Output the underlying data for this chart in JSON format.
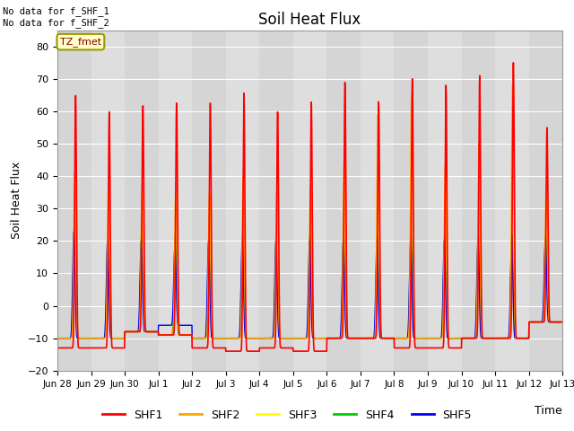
{
  "title": "Soil Heat Flux",
  "ylabel": "Soil Heat Flux",
  "xlabel": "Time",
  "annotation_text": "No data for f_SHF_1\nNo data for f_SHF_2",
  "legend_box_text": "TZ_fmet",
  "ylim": [
    -20,
    85
  ],
  "yticks": [
    -20,
    -10,
    0,
    10,
    20,
    30,
    40,
    50,
    60,
    70,
    80
  ],
  "colors": {
    "SHF1": "#ff0000",
    "SHF2": "#ffa500",
    "SHF3": "#ffff00",
    "SHF4": "#00cc00",
    "SHF5": "#0000ff"
  },
  "background_color": "#dcdcdc",
  "x_tick_labels": [
    "Jun 28",
    "Jun 29",
    "Jun 30",
    "Jul 1",
    "Jul 2",
    "Jul 3",
    "Jul 4",
    "Jul 5",
    "Jul 6",
    "Jul 7",
    "Jul 8",
    "Jul 9",
    "Jul 10",
    "Jul 11",
    "Jul 12",
    "Jul 13"
  ],
  "n_days": 16,
  "peaks_shf1": [
    65,
    60,
    62,
    63,
    63,
    66,
    60,
    63,
    69,
    63,
    70,
    68,
    71,
    75,
    55
  ],
  "peaks_shf2": [
    41,
    37,
    37,
    38,
    35,
    40,
    36,
    37,
    45,
    59,
    65,
    43,
    50,
    68,
    37
  ],
  "peaks_shf3": [
    22,
    20,
    22,
    22,
    20,
    22,
    22,
    22,
    22,
    22,
    22,
    22,
    22,
    22,
    22
  ],
  "peaks_shf4": [
    22,
    20,
    22,
    22,
    20,
    22,
    22,
    22,
    22,
    22,
    22,
    22,
    22,
    22,
    22
  ],
  "peaks_shf5": [
    23,
    20,
    20,
    18,
    20,
    20,
    20,
    20,
    20,
    20,
    20,
    20,
    20,
    20,
    20
  ],
  "mins_shf1": [
    -13,
    -13,
    -8,
    -9,
    -13,
    -14,
    -13,
    -14,
    -10,
    -10,
    -13,
    -13,
    -10,
    -10,
    -5
  ],
  "mins_shf2": [
    -10,
    -10,
    -8,
    -9,
    -10,
    -10,
    -10,
    -10,
    -10,
    -10,
    -10,
    -10,
    -10,
    -10,
    -5
  ],
  "mins_shf3": [
    -10,
    -10,
    -8,
    -9,
    -10,
    -10,
    -10,
    -10,
    -10,
    -10,
    -10,
    -10,
    -10,
    -10,
    -5
  ],
  "mins_shf4": [
    -10,
    -10,
    -8,
    -9,
    -10,
    -10,
    -10,
    -10,
    -10,
    -10,
    -10,
    -10,
    -10,
    -10,
    -5
  ],
  "mins_shf5": [
    -10,
    -10,
    -8,
    -6,
    -10,
    -10,
    -10,
    -10,
    -10,
    -10,
    -10,
    -10,
    -10,
    -10,
    -5
  ]
}
